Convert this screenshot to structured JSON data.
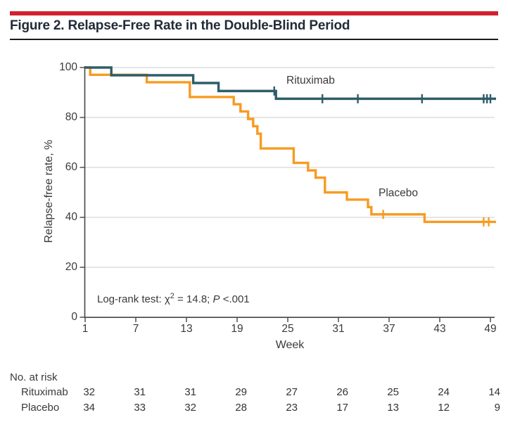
{
  "chart_data": {
    "type": "line",
    "subtype": "kaplan-meier-step",
    "title": "Figure 2. Relapse-Free Rate in the Double-Blind Period",
    "xlabel": "Week",
    "ylabel": "Relapse-free rate, %",
    "xlim": [
      1,
      49
    ],
    "ylim": [
      0,
      100
    ],
    "x_ticks": [
      1,
      7,
      13,
      19,
      25,
      31,
      37,
      43,
      49
    ],
    "y_ticks": [
      0,
      20,
      40,
      60,
      80,
      100
    ],
    "grid": "horizontal",
    "colors": {
      "rituximab": "#2E5D68",
      "placebo": "#F79B22",
      "grid": "#D8D8D8",
      "axis": "#454545",
      "accent_rule": "#D2212F"
    },
    "annotation": {
      "prefix": "Log-rank test: χ",
      "sup": "2",
      "mid": " = 14.8; ",
      "p": "P",
      "tail": " <.001"
    },
    "series": [
      {
        "name": "Rituximab",
        "color": "#2E5D68",
        "steps": [
          [
            1,
            100
          ],
          [
            4.1,
            96.9
          ],
          [
            13.8,
            93.8
          ],
          [
            16.8,
            90.6
          ],
          [
            23.6,
            87.5
          ],
          [
            49,
            87.5
          ]
        ],
        "censors": [
          [
            23.4,
            90.6
          ],
          [
            29.1,
            87.5
          ],
          [
            33.3,
            87.5
          ],
          [
            40.9,
            87.5
          ],
          [
            48.2,
            87.5
          ],
          [
            48.6,
            87.5
          ],
          [
            49,
            87.5
          ]
        ]
      },
      {
        "name": "Placebo",
        "color": "#F79B22",
        "steps": [
          [
            1,
            100
          ],
          [
            1.6,
            97.1
          ],
          [
            8.3,
            94.1
          ],
          [
            13.4,
            88.2
          ],
          [
            18.6,
            85.3
          ],
          [
            19.4,
            82.4
          ],
          [
            20.3,
            79.4
          ],
          [
            20.9,
            76.5
          ],
          [
            21.4,
            73.5
          ],
          [
            21.8,
            67.6
          ],
          [
            25.7,
            61.8
          ],
          [
            27.4,
            58.8
          ],
          [
            28.3,
            55.9
          ],
          [
            29.4,
            50.0
          ],
          [
            32.0,
            47.1
          ],
          [
            34.5,
            44.1
          ],
          [
            34.9,
            41.2
          ],
          [
            41.2,
            38.2
          ],
          [
            49,
            38.2
          ]
        ],
        "censors": [
          [
            36.3,
            41.2
          ],
          [
            48.2,
            38.2
          ],
          [
            48.8,
            38.2
          ]
        ]
      }
    ],
    "risk_table": {
      "header": "No. at risk",
      "weeks": [
        1,
        7,
        13,
        19,
        25,
        31,
        37,
        43,
        49
      ],
      "rows": [
        {
          "name": "Rituximab",
          "counts": [
            32,
            31,
            31,
            29,
            27,
            26,
            25,
            24,
            14
          ]
        },
        {
          "name": "Placebo",
          "counts": [
            34,
            33,
            32,
            28,
            23,
            17,
            13,
            12,
            9
          ]
        }
      ]
    }
  }
}
